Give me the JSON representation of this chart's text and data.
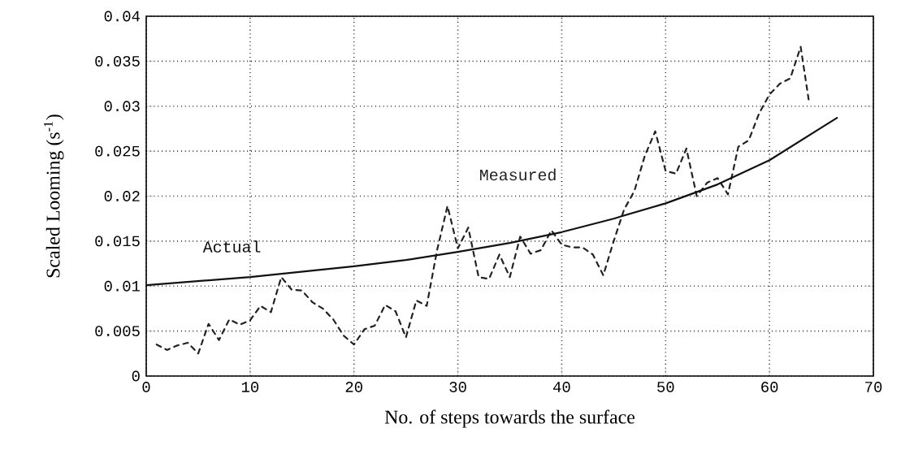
{
  "chart_data": {
    "type": "line",
    "xlabel": "No. of steps towards the surface",
    "ylabel": "Scaled Looming (s$^{-1}$)",
    "xlim": [
      0,
      70
    ],
    "xticks": [
      0,
      10,
      20,
      30,
      40,
      50,
      60,
      70
    ],
    "ylim": [
      0,
      0.04
    ],
    "yticks": [
      0,
      0.005,
      0.01,
      0.015,
      0.02,
      0.025,
      0.03,
      0.035,
      0.04
    ],
    "grid": true,
    "series": [
      {
        "name": "Measured",
        "color": "#222222",
        "line_style": "dashed",
        "x": [
          1,
          2,
          3,
          4,
          5,
          6,
          7,
          8,
          9,
          10,
          11,
          12,
          13,
          14,
          15,
          16,
          17,
          18,
          19,
          20,
          21,
          22,
          23,
          24,
          25,
          26,
          27,
          28,
          29,
          30,
          31,
          32,
          33,
          34,
          35,
          36,
          37,
          38,
          39,
          40,
          41,
          42,
          43,
          44,
          45,
          46,
          47,
          48,
          49,
          50,
          51,
          52,
          53,
          54,
          55,
          56,
          57,
          58,
          59,
          60,
          61,
          62,
          63,
          63.8
        ],
        "values": [
          0.0035,
          0.0029,
          0.0034,
          0.0037,
          0.0025,
          0.0058,
          0.004,
          0.0063,
          0.0057,
          0.0062,
          0.0078,
          0.0071,
          0.011,
          0.0096,
          0.0095,
          0.0082,
          0.0075,
          0.0063,
          0.0045,
          0.0035,
          0.0052,
          0.0056,
          0.0079,
          0.0072,
          0.0043,
          0.0084,
          0.0078,
          0.014,
          0.0189,
          0.0142,
          0.0165,
          0.011,
          0.0108,
          0.0135,
          0.011,
          0.0155,
          0.0136,
          0.014,
          0.0162,
          0.0146,
          0.0143,
          0.0143,
          0.0135,
          0.0112,
          0.015,
          0.0185,
          0.0206,
          0.0245,
          0.0272,
          0.0228,
          0.0225,
          0.0253,
          0.02,
          0.0215,
          0.022,
          0.0202,
          0.0255,
          0.0262,
          0.0292,
          0.0313,
          0.0325,
          0.0331,
          0.0366,
          0.0305
        ]
      },
      {
        "name": "Actual",
        "color": "#111111",
        "line_style": "solid",
        "x": [
          0,
          10,
          20,
          25,
          30,
          35,
          40,
          45,
          50,
          55,
          60,
          66.5
        ],
        "values": [
          0.0101,
          0.011,
          0.0122,
          0.0129,
          0.0138,
          0.0148,
          0.016,
          0.0175,
          0.0192,
          0.0213,
          0.024,
          0.0287
        ]
      }
    ]
  }
}
